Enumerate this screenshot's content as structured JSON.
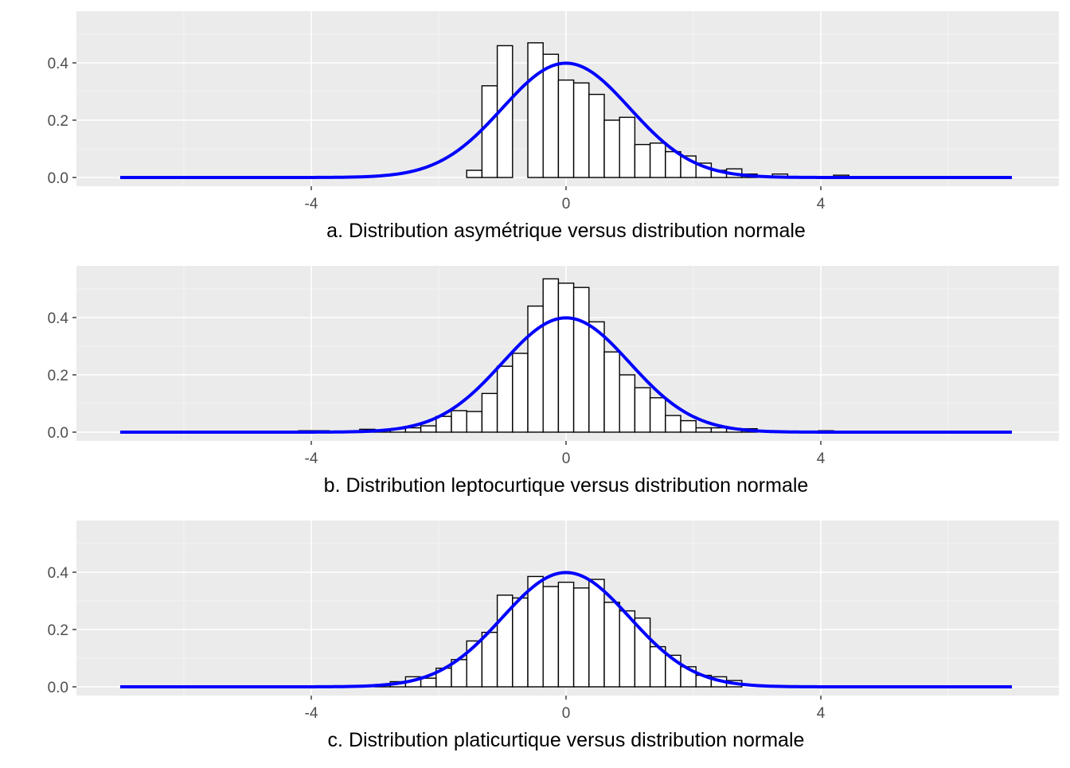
{
  "chart_data": [
    {
      "type": "bar",
      "title": "a. Distribution asymétrique versus distribution normale",
      "xlabel": "a. Distribution asymétrique versus distribution normale",
      "ylabel": "",
      "xlim": [
        -7,
        7
      ],
      "ylim": [
        0,
        0.55
      ],
      "xticks": [
        -4,
        0,
        4
      ],
      "xtick_labels": [
        "-4",
        "0",
        "4"
      ],
      "yticks": [
        0,
        0.2,
        0.4
      ],
      "ytick_labels": [
        "0.0",
        "0.2",
        "0.4"
      ],
      "grid": true,
      "bin_width": 0.24,
      "series": [
        {
          "type": "histogram",
          "bins": [
            {
              "x0": -1.56,
              "x1": -1.32,
              "y": 0.025
            },
            {
              "x0": -1.32,
              "x1": -1.08,
              "y": 0.32
            },
            {
              "x0": -1.08,
              "x1": -0.84,
              "y": 0.46
            },
            {
              "x0": -0.6,
              "x1": -0.36,
              "y": 0.47
            },
            {
              "x0": -0.36,
              "x1": -0.12,
              "y": 0.43
            },
            {
              "x0": -0.12,
              "x1": 0.12,
              "y": 0.34
            },
            {
              "x0": 0.12,
              "x1": 0.36,
              "y": 0.33
            },
            {
              "x0": 0.36,
              "x1": 0.6,
              "y": 0.29
            },
            {
              "x0": 0.6,
              "x1": 0.84,
              "y": 0.2
            },
            {
              "x0": 0.84,
              "x1": 1.08,
              "y": 0.21
            },
            {
              "x0": 1.08,
              "x1": 1.32,
              "y": 0.115
            },
            {
              "x0": 1.32,
              "x1": 1.56,
              "y": 0.12
            },
            {
              "x0": 1.56,
              "x1": 1.8,
              "y": 0.09
            },
            {
              "x0": 1.8,
              "x1": 2.04,
              "y": 0.075
            },
            {
              "x0": 2.04,
              "x1": 2.28,
              "y": 0.05
            },
            {
              "x0": 2.28,
              "x1": 2.52,
              "y": 0.025
            },
            {
              "x0": 2.52,
              "x1": 2.76,
              "y": 0.03
            },
            {
              "x0": 2.76,
              "x1": 3.0,
              "y": 0.012
            },
            {
              "x0": 3.24,
              "x1": 3.48,
              "y": 0.012
            },
            {
              "x0": 4.2,
              "x1": 4.44,
              "y": 0.008
            }
          ]
        },
        {
          "type": "line",
          "curve": "normal density",
          "mean": 0,
          "sd": 1,
          "x_range": [
            -7,
            7
          ],
          "color": "#0000ff"
        }
      ]
    },
    {
      "type": "bar",
      "title": "b. Distribution leptocurtique versus distribution normale",
      "xlabel": "b. Distribution leptocurtique versus distribution normale",
      "ylabel": "",
      "xlim": [
        -7,
        7
      ],
      "ylim": [
        0,
        0.55
      ],
      "xticks": [
        -4,
        0,
        4
      ],
      "xtick_labels": [
        "-4",
        "0",
        "4"
      ],
      "yticks": [
        0,
        0.2,
        0.4
      ],
      "ytick_labels": [
        "0.0",
        "0.2",
        "0.4"
      ],
      "grid": true,
      "bin_width": 0.24,
      "series": [
        {
          "type": "histogram",
          "bins": [
            {
              "x0": -4.2,
              "x1": -3.96,
              "y": 0.005
            },
            {
              "x0": -3.96,
              "x1": -3.72,
              "y": 0.005
            },
            {
              "x0": -3.24,
              "x1": -3.0,
              "y": 0.01
            },
            {
              "x0": -3.0,
              "x1": -2.76,
              "y": 0.008
            },
            {
              "x0": -2.76,
              "x1": -2.52,
              "y": 0.012
            },
            {
              "x0": -2.52,
              "x1": -2.28,
              "y": 0.015
            },
            {
              "x0": -2.28,
              "x1": -2.04,
              "y": 0.022
            },
            {
              "x0": -2.04,
              "x1": -1.8,
              "y": 0.055
            },
            {
              "x0": -1.8,
              "x1": -1.56,
              "y": 0.075
            },
            {
              "x0": -1.56,
              "x1": -1.32,
              "y": 0.072
            },
            {
              "x0": -1.32,
              "x1": -1.08,
              "y": 0.135
            },
            {
              "x0": -1.08,
              "x1": -0.84,
              "y": 0.23
            },
            {
              "x0": -0.84,
              "x1": -0.6,
              "y": 0.275
            },
            {
              "x0": -0.6,
              "x1": -0.36,
              "y": 0.44
            },
            {
              "x0": -0.36,
              "x1": -0.12,
              "y": 0.535
            },
            {
              "x0": -0.12,
              "x1": 0.12,
              "y": 0.52
            },
            {
              "x0": 0.12,
              "x1": 0.36,
              "y": 0.505
            },
            {
              "x0": 0.36,
              "x1": 0.6,
              "y": 0.385
            },
            {
              "x0": 0.6,
              "x1": 0.84,
              "y": 0.28
            },
            {
              "x0": 0.84,
              "x1": 1.08,
              "y": 0.2
            },
            {
              "x0": 1.08,
              "x1": 1.32,
              "y": 0.155
            },
            {
              "x0": 1.32,
              "x1": 1.56,
              "y": 0.12
            },
            {
              "x0": 1.56,
              "x1": 1.8,
              "y": 0.058
            },
            {
              "x0": 1.8,
              "x1": 2.04,
              "y": 0.04
            },
            {
              "x0": 2.04,
              "x1": 2.28,
              "y": 0.015
            },
            {
              "x0": 2.28,
              "x1": 2.52,
              "y": 0.015
            },
            {
              "x0": 2.52,
              "x1": 2.76,
              "y": 0.012
            },
            {
              "x0": 2.76,
              "x1": 3.0,
              "y": 0.012
            },
            {
              "x0": 3.96,
              "x1": 4.2,
              "y": 0.005
            }
          ]
        },
        {
          "type": "line",
          "curve": "normal density",
          "mean": 0,
          "sd": 1,
          "x_range": [
            -7,
            7
          ],
          "color": "#0000ff"
        }
      ]
    },
    {
      "type": "bar",
      "title": "c. Distribution platicurtique versus distribution normale",
      "xlabel": "c. Distribution platicurtique versus distribution normale",
      "ylabel": "",
      "xlim": [
        -7,
        7
      ],
      "ylim": [
        0,
        0.55
      ],
      "xticks": [
        -4,
        0,
        4
      ],
      "xtick_labels": [
        "-4",
        "0",
        "4"
      ],
      "yticks": [
        0,
        0.2,
        0.4
      ],
      "ytick_labels": [
        "0.0",
        "0.2",
        "0.4"
      ],
      "grid": true,
      "bin_width": 0.24,
      "series": [
        {
          "type": "histogram",
          "bins": [
            {
              "x0": -3.0,
              "x1": -2.76,
              "y": 0.008
            },
            {
              "x0": -2.76,
              "x1": -2.52,
              "y": 0.018
            },
            {
              "x0": -2.52,
              "x1": -2.28,
              "y": 0.035
            },
            {
              "x0": -2.28,
              "x1": -2.04,
              "y": 0.03
            },
            {
              "x0": -2.04,
              "x1": -1.8,
              "y": 0.065
            },
            {
              "x0": -1.8,
              "x1": -1.56,
              "y": 0.095
            },
            {
              "x0": -1.56,
              "x1": -1.32,
              "y": 0.16
            },
            {
              "x0": -1.32,
              "x1": -1.08,
              "y": 0.19
            },
            {
              "x0": -1.08,
              "x1": -0.84,
              "y": 0.32
            },
            {
              "x0": -0.84,
              "x1": -0.6,
              "y": 0.31
            },
            {
              "x0": -0.6,
              "x1": -0.36,
              "y": 0.385
            },
            {
              "x0": -0.36,
              "x1": -0.12,
              "y": 0.35
            },
            {
              "x0": -0.12,
              "x1": 0.12,
              "y": 0.365
            },
            {
              "x0": 0.12,
              "x1": 0.36,
              "y": 0.345
            },
            {
              "x0": 0.36,
              "x1": 0.6,
              "y": 0.375
            },
            {
              "x0": 0.6,
              "x1": 0.84,
              "y": 0.295
            },
            {
              "x0": 0.84,
              "x1": 1.08,
              "y": 0.265
            },
            {
              "x0": 1.08,
              "x1": 1.32,
              "y": 0.24
            },
            {
              "x0": 1.32,
              "x1": 1.56,
              "y": 0.14
            },
            {
              "x0": 1.56,
              "x1": 1.8,
              "y": 0.11
            },
            {
              "x0": 1.8,
              "x1": 2.04,
              "y": 0.07
            },
            {
              "x0": 2.04,
              "x1": 2.28,
              "y": 0.04
            },
            {
              "x0": 2.28,
              "x1": 2.52,
              "y": 0.035
            },
            {
              "x0": 2.52,
              "x1": 2.76,
              "y": 0.022
            }
          ]
        },
        {
          "type": "line",
          "curve": "normal density",
          "mean": 0,
          "sd": 1,
          "x_range": [
            -7,
            7
          ],
          "color": "#0000ff"
        }
      ]
    }
  ],
  "colors": {
    "panel_background": "#ebebeb",
    "grid_major": "#ffffff",
    "bar_fill": "#ffffff",
    "bar_stroke": "#000000",
    "curve": "#0000ff",
    "tick_text": "#4d4d4d",
    "caption_text": "#000000"
  }
}
